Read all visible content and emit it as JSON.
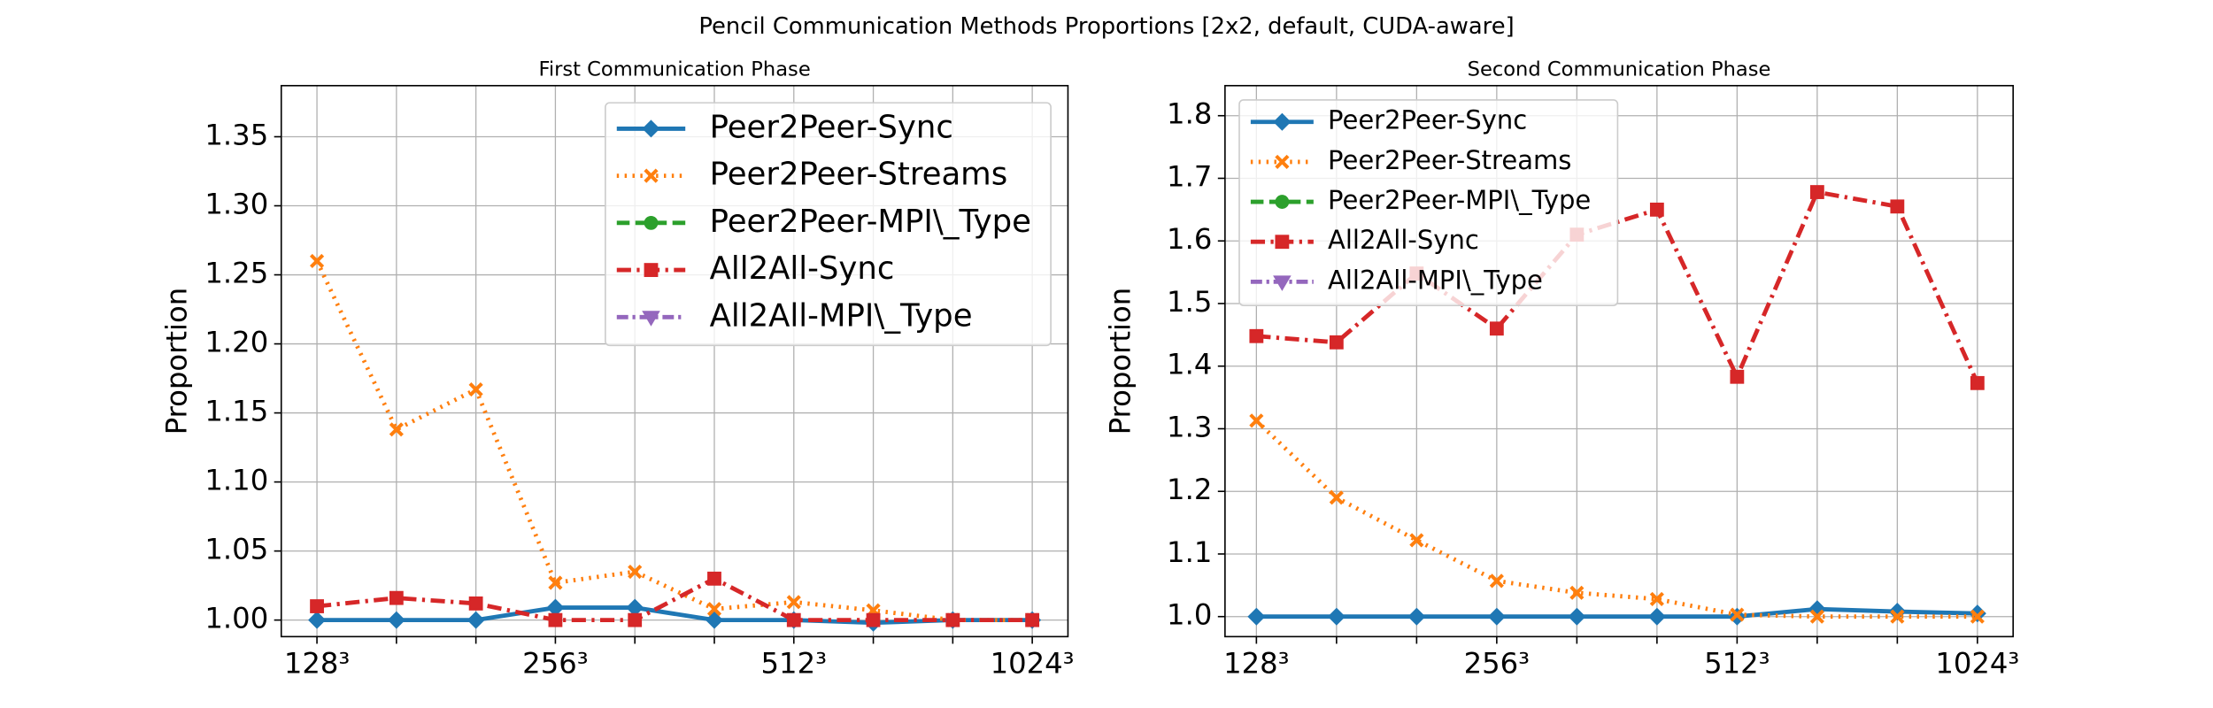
{
  "title": "Pencil Communication Methods Proportions [2x2, default, CUDA-aware]",
  "chart_data": [
    {
      "type": "line",
      "title": "First Communication Phase",
      "ylabel": "Proportion",
      "categories": [
        "128³",
        null,
        null,
        "256³",
        null,
        null,
        "512³",
        null,
        null,
        "1024³"
      ],
      "ylim": [
        0.988,
        1.387
      ],
      "yticks": [
        {
          "value": 1.0,
          "label": "1.00"
        },
        {
          "value": 1.05,
          "label": "1.05"
        },
        {
          "value": 1.1,
          "label": "1.10"
        },
        {
          "value": 1.15,
          "label": "1.15"
        },
        {
          "value": 1.2,
          "label": "1.20"
        },
        {
          "value": 1.25,
          "label": "1.25"
        },
        {
          "value": 1.3,
          "label": "1.30"
        },
        {
          "value": 1.35,
          "label": "1.35"
        }
      ],
      "grid": true,
      "legend": "upper right",
      "series": [
        {
          "name": "Peer2Peer-Sync",
          "color": "#1f77b4",
          "marker": "diamond",
          "linestyle": "solid",
          "values": [
            1.0,
            1.0,
            1.0,
            1.009,
            1.009,
            1.0,
            1.0,
            0.998,
            1.0,
            1.0
          ]
        },
        {
          "name": "Peer2Peer-Streams",
          "color": "#ff7f0e",
          "marker": "x",
          "linestyle": "dotted",
          "values": [
            1.26,
            1.138,
            1.167,
            1.027,
            1.035,
            1.008,
            1.013,
            1.007,
            1.0,
            1.0
          ]
        },
        {
          "name": "Peer2Peer-MPI\\_Type",
          "color": "#2ca02c",
          "marker": "circle",
          "linestyle": "dashed",
          "values": [
            null,
            null,
            null,
            null,
            null,
            null,
            null,
            null,
            null,
            null
          ]
        },
        {
          "name": "All2All-Sync",
          "color": "#d62728",
          "marker": "square",
          "linestyle": "dashdot",
          "values": [
            1.01,
            1.016,
            1.012,
            1.0,
            1.0,
            1.03,
            1.0,
            1.0,
            1.0,
            1.0
          ]
        },
        {
          "name": "All2All-MPI\\_Type",
          "color": "#9467bd",
          "marker": "triangle-down",
          "linestyle": "dashdot2",
          "values": [
            null,
            null,
            null,
            null,
            null,
            null,
            null,
            null,
            null,
            null
          ]
        }
      ]
    },
    {
      "type": "line",
      "title": "Second Communication Phase",
      "ylabel": "Proportion",
      "categories": [
        "128³",
        null,
        null,
        "256³",
        null,
        null,
        "512³",
        null,
        null,
        "1024³"
      ],
      "ylim": [
        0.968,
        1.848
      ],
      "yticks": [
        {
          "value": 1.0,
          "label": "1.0"
        },
        1.1,
        1.2,
        1.3,
        1.4,
        1.5,
        1.6,
        1.7,
        1.8
      ],
      "grid": true,
      "legend": "upper left",
      "series": [
        {
          "name": "Peer2Peer-Sync",
          "color": "#1f77b4",
          "marker": "diamond",
          "linestyle": "solid",
          "values": [
            1.0,
            1.0,
            1.0,
            1.0,
            1.0,
            1.0,
            1.0,
            1.012,
            1.008,
            1.005
          ]
        },
        {
          "name": "Peer2Peer-Streams",
          "color": "#ff7f0e",
          "marker": "x",
          "linestyle": "dotted",
          "values": [
            1.313,
            1.19,
            1.122,
            1.057,
            1.038,
            1.028,
            1.003,
            1.0,
            1.0,
            1.0
          ]
        },
        {
          "name": "Peer2Peer-MPI\\_Type",
          "color": "#2ca02c",
          "marker": "circle",
          "linestyle": "dashed",
          "values": [
            null,
            null,
            null,
            null,
            null,
            null,
            null,
            null,
            null,
            null
          ]
        },
        {
          "name": "All2All-Sync",
          "color": "#d62728",
          "marker": "square",
          "linestyle": "dashdot",
          "values": [
            1.448,
            1.438,
            1.548,
            1.46,
            1.61,
            1.65,
            1.383,
            1.678,
            1.655,
            1.373
          ]
        },
        {
          "name": "All2All-MPI\\_Type",
          "color": "#9467bd",
          "marker": "triangle-down",
          "linestyle": "dashdot2",
          "values": [
            null,
            null,
            null,
            null,
            null,
            null,
            null,
            null,
            null,
            null
          ]
        }
      ]
    }
  ]
}
